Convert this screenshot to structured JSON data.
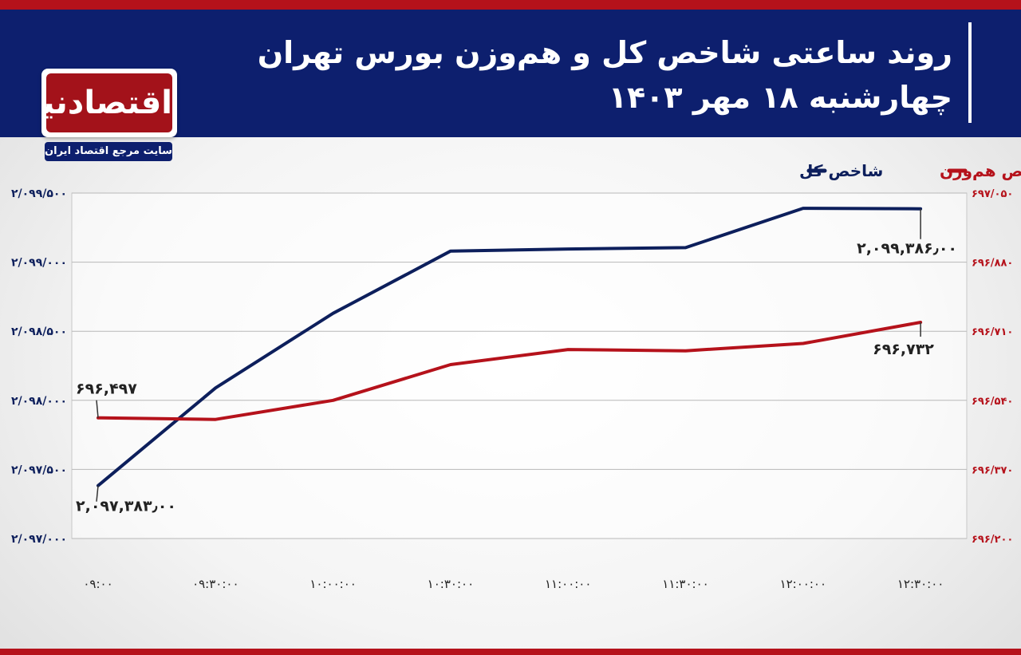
{
  "header": {
    "title_line1": "روند ساعتی شاخص کل و هم‌وزن بورس تهران",
    "title_line2": "چهارشنبه ۱۸ مهر ۱۴۰۳"
  },
  "logo": {
    "name": "اقتصادنیوز",
    "tagline": "سایت مرجع اقتصاد ایران"
  },
  "colors": {
    "header_bg": "#0d1f6e",
    "accent_red": "#b5121b",
    "series_total": "#0d1f5c",
    "series_equal": "#b5121b"
  },
  "chart_data": {
    "type": "line",
    "x": [
      "۰۹:۰۰",
      "۰۹:۳۰:۰۰",
      "۱۰:۰۰:۰۰",
      "۱۰:۳۰:۰۰",
      "۱۱:۰۰:۰۰",
      "۱۱:۳۰:۰۰",
      "۱۲:۰۰:۰۰",
      "۱۲:۳۰:۰۰"
    ],
    "legend_position": "top-right",
    "grid": true,
    "series": [
      {
        "name": "شاخص کل",
        "axis": "left",
        "color": "#0d1f5c",
        "values": [
          2097383,
          2098090,
          2098630,
          2099080,
          2099095,
          2099105,
          2099390,
          2099386
        ],
        "annotations": [
          {
            "index": 0,
            "label": "۲,۰۹۷,۳۸۳٫۰۰"
          },
          {
            "index": 7,
            "label": "۲,۰۹۹,۳۸۶٫۰۰"
          }
        ]
      },
      {
        "name": "شاخص هم‌وزن",
        "axis": "right",
        "color": "#b5121b",
        "values": [
          696.497,
          696.493,
          696.54,
          696.628,
          696.665,
          696.662,
          696.68,
          696.732
        ],
        "annotations": [
          {
            "index": 0,
            "label": "۶۹۶,۴۹۷"
          },
          {
            "index": 7,
            "label": "۶۹۶,۷۳۲"
          }
        ]
      }
    ],
    "y_left": {
      "min": 2097000,
      "max": 2099500,
      "ticks": [
        2097000,
        2097500,
        2098000,
        2098500,
        2099000,
        2099500
      ],
      "tick_labels": [
        "۲/۰۹۷/۰۰۰",
        "۲/۰۹۷/۵۰۰",
        "۲/۰۹۸/۰۰۰",
        "۲/۰۹۸/۵۰۰",
        "۲/۰۹۹/۰۰۰",
        "۲/۰۹۹/۵۰۰"
      ]
    },
    "y_right": {
      "min": 696.2,
      "max": 697.05,
      "ticks": [
        696.2,
        696.37,
        696.54,
        696.71,
        696.88,
        697.05
      ],
      "tick_labels": [
        "۶۹۶/۲۰۰",
        "۶۹۶/۳۷۰",
        "۶۹۶/۵۴۰",
        "۶۹۶/۷۱۰",
        "۶۹۶/۸۸۰",
        "۶۹۷/۰۵۰"
      ]
    }
  }
}
